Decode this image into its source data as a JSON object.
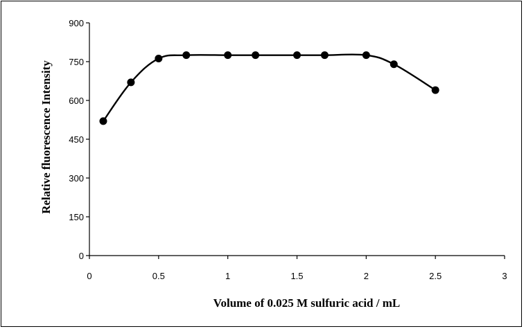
{
  "chart_data": {
    "type": "line",
    "xlabel": "Volume of 0.025 M sulfuric acid / mL",
    "ylabel": "Relative fluorescence Intensity",
    "xlim": [
      0,
      3
    ],
    "ylim": [
      0,
      900
    ],
    "xticks": [
      0,
      0.5,
      1,
      1.5,
      2,
      2.5,
      3
    ],
    "xtick_labels": [
      "0",
      "0.5",
      "1",
      "1.5",
      "2",
      "2.5",
      "3"
    ],
    "yticks": [
      0,
      150,
      300,
      450,
      600,
      750,
      900
    ],
    "ytick_labels": [
      "0",
      "150",
      "300",
      "450",
      "600",
      "750",
      "900"
    ],
    "grid": false,
    "legend": false,
    "series": [
      {
        "smooth": true,
        "marker": "circle",
        "color": "#000000",
        "x": [
          0.1,
          0.3,
          0.5,
          0.7,
          1.0,
          1.2,
          1.5,
          1.7,
          2.0,
          2.2,
          2.5
        ],
        "y": [
          520,
          670,
          762,
          775,
          775,
          775,
          775,
          775,
          775,
          740,
          640
        ]
      }
    ]
  }
}
